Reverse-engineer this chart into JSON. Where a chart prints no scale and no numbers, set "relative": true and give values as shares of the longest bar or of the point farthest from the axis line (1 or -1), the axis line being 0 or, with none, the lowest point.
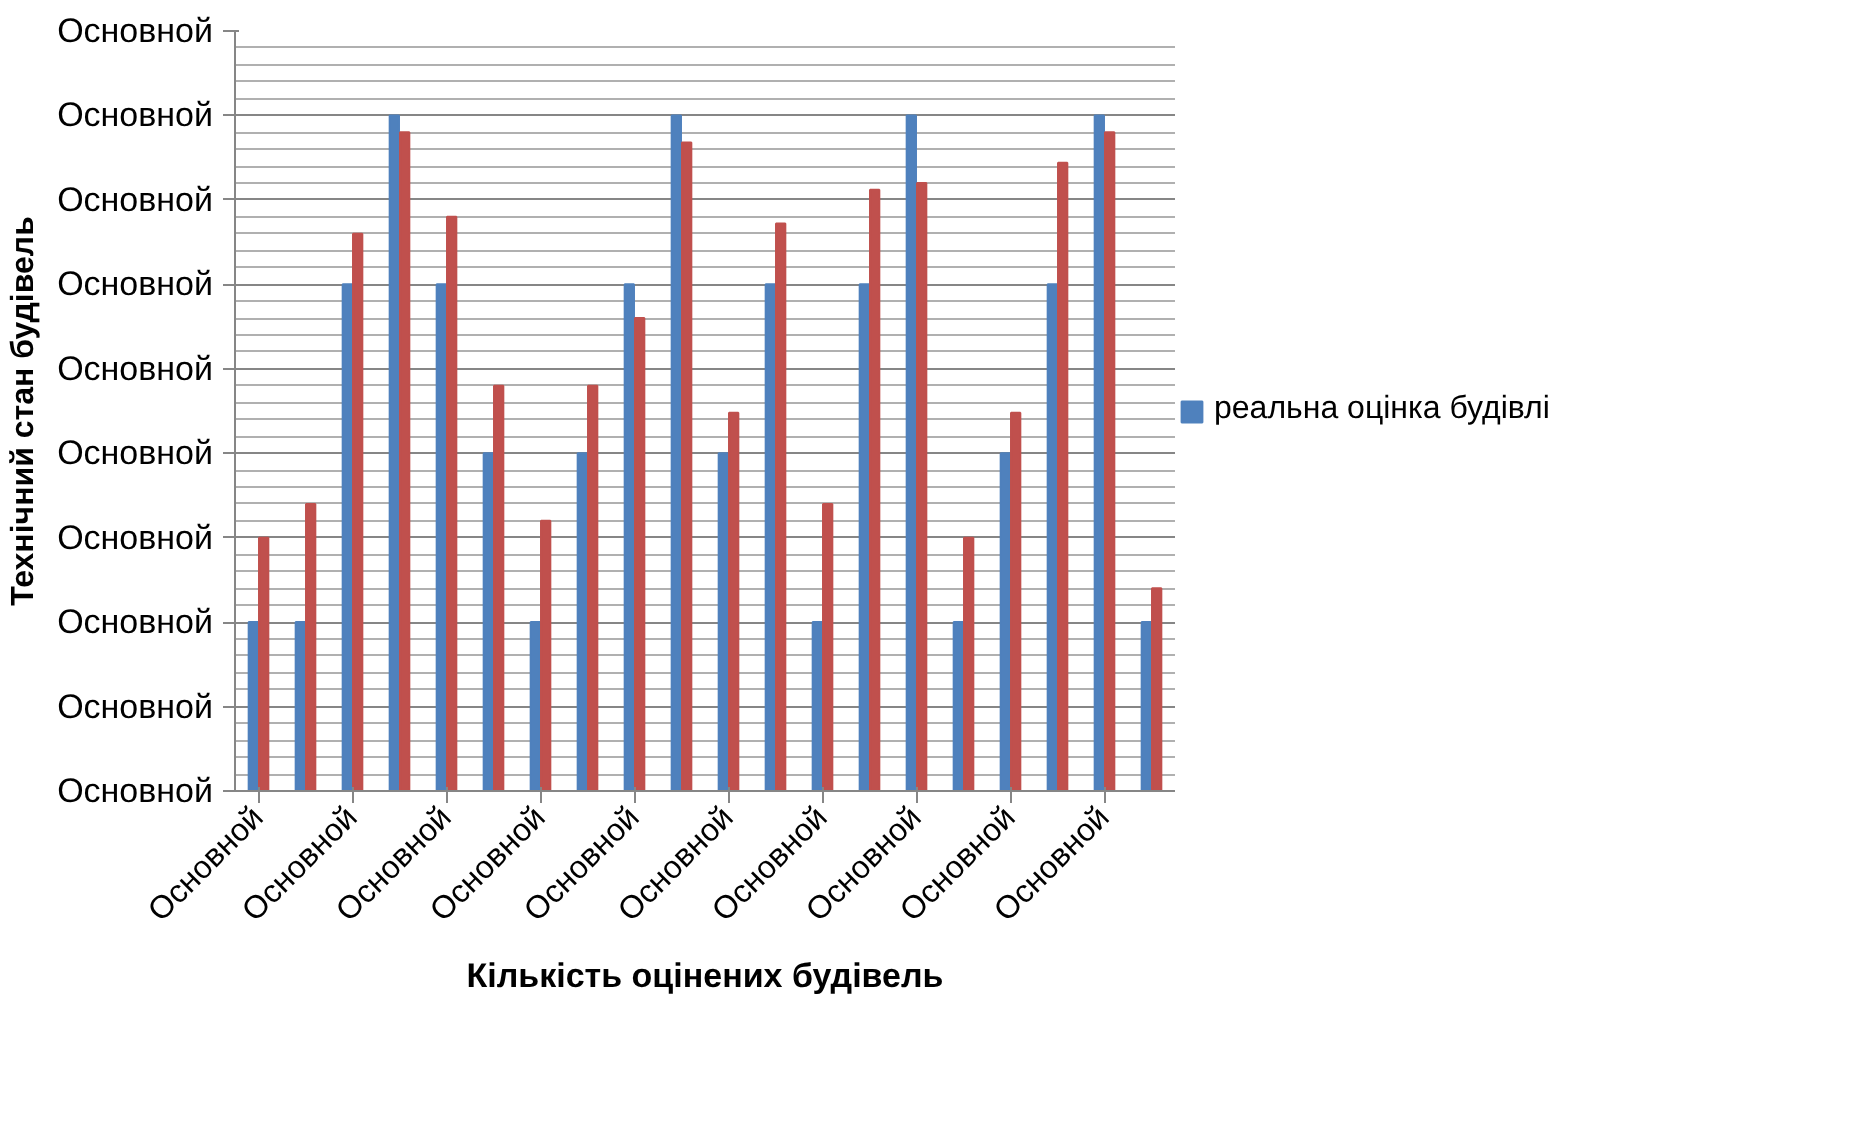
{
  "chart_data": {
    "type": "bar",
    "xlabel": "Кількість оцінених будівель",
    "ylabel": "Технічний стан будівель",
    "categories": [
      "Основной",
      null,
      "Основной",
      null,
      "Основной",
      null,
      "Основной",
      null,
      "Основной",
      null,
      "Основной",
      null,
      "Основной",
      null,
      "Основной",
      null,
      "Основной",
      null,
      "Основной",
      null
    ],
    "series": [
      {
        "name": "реальна оцінка будівлі",
        "color": "#4f81bd",
        "values": [
          0.25,
          0.25,
          0.75,
          1,
          0.75,
          0.5,
          0.25,
          0.5,
          0.75,
          1,
          0.5,
          0.75,
          0.25,
          0.75,
          1,
          0.25,
          0.5,
          0.75,
          1,
          0.25
        ]
      },
      {
        "color": "#c0504d",
        "values": [
          0.375,
          0.425,
          0.825,
          0.975,
          0.85,
          0.6,
          0.4,
          0.6,
          0.7,
          0.96,
          0.56,
          0.84,
          0.425,
          0.89,
          0.9,
          0.375,
          0.56,
          0.93,
          0.975,
          0.3
        ]
      }
    ],
    "relative": true,
    "annotations": [
      "Основной",
      "Основной",
      "Основной",
      "Основной",
      "Основной",
      "Основной",
      "Основной",
      "Основной",
      "Основной",
      "Основной"
    ],
    "grid": "y",
    "legend": "right"
  }
}
